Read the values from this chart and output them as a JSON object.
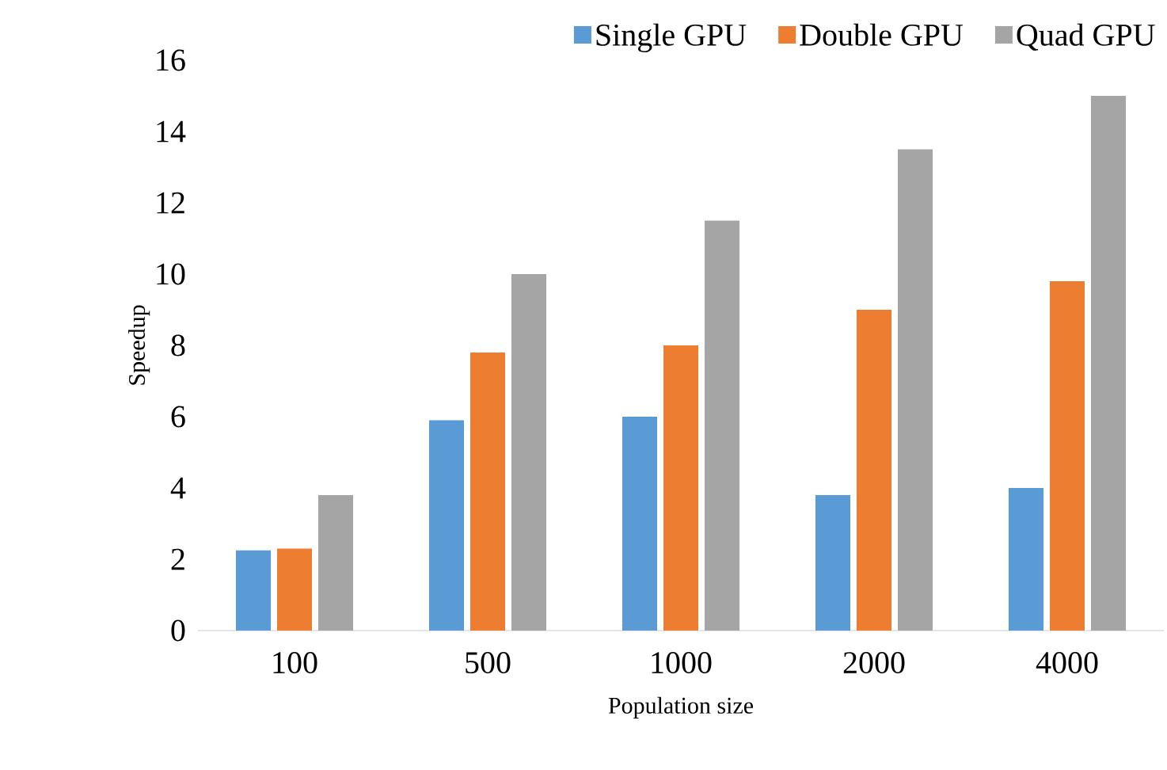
{
  "chart_data": {
    "type": "bar",
    "xlabel": "Population size",
    "ylabel": "Speedup",
    "categories": [
      "100",
      "500",
      "1000",
      "2000",
      "4000"
    ],
    "series": [
      {
        "name": "Single GPU",
        "color": "#5b9bd5",
        "values": [
          2.25,
          5.9,
          6.0,
          3.8,
          4.0
        ]
      },
      {
        "name": "Double GPU",
        "color": "#ed7d31",
        "values": [
          2.3,
          7.8,
          8.0,
          9.0,
          9.8
        ]
      },
      {
        "name": "Quad GPU",
        "color": "#a5a5a5",
        "values": [
          3.8,
          10.0,
          11.5,
          13.5,
          15.0
        ]
      }
    ],
    "ylim": [
      0,
      16
    ],
    "yticks": [
      0,
      2,
      4,
      6,
      8,
      10,
      12,
      14,
      16
    ],
    "legend": "top right",
    "grid": false
  }
}
